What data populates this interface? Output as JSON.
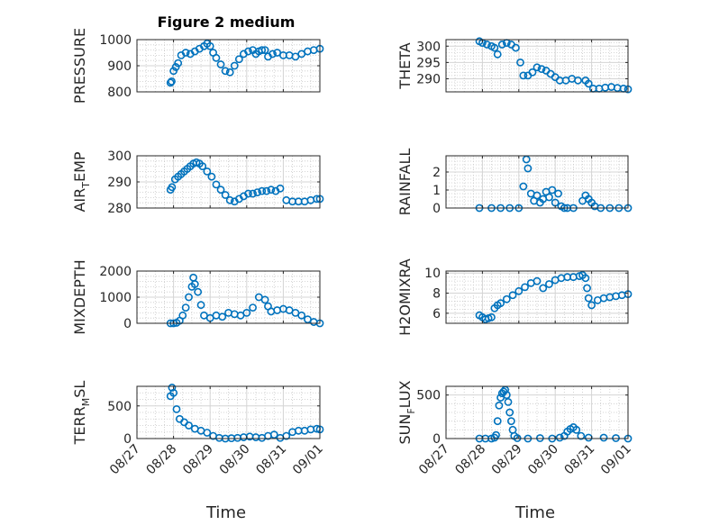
{
  "figure": {
    "title": "Figure 2 medium",
    "xlabel": "Time"
  },
  "xticks": [
    "08/27",
    "08/28",
    "08/29",
    "08/30",
    "08/31",
    "09/01"
  ],
  "colors": {
    "marker": "#0072BD",
    "axis": "#262626",
    "grid": "#d4d4d4"
  },
  "chart_data": [
    {
      "type": "scatter",
      "ylabel": "PRESSURE",
      "ylim": [
        800,
        1000
      ],
      "yticks": [
        800,
        900,
        1000
      ],
      "grid": true,
      "x": [
        "08/27 22:00",
        "08/27 22:45",
        "08/28 00:00",
        "08/28 01:30",
        "08/28 03:00",
        "08/28 05:00",
        "08/28 08:00",
        "08/28 11:00",
        "08/28 14:00",
        "08/28 17:00",
        "08/28 20:00",
        "08/28 22:00",
        "08/29 00:00",
        "08/29 02:00",
        "08/29 04:00",
        "08/29 07:00",
        "08/29 10:00",
        "08/29 13:00",
        "08/29 16:00",
        "08/29 19:00",
        "08/29 22:00",
        "08/30 01:00",
        "08/30 04:00",
        "08/30 06:00",
        "08/30 08:00",
        "08/30 10:00",
        "08/30 12:00",
        "08/30 14:00",
        "08/30 17:00",
        "08/30 20:00",
        "08/31 00:00",
        "08/31 04:00",
        "08/31 08:00",
        "08/31 12:00",
        "08/31 16:00",
        "08/31 20:00",
        "09/01 00:00"
      ],
      "y": [
        835,
        840,
        880,
        895,
        910,
        940,
        950,
        945,
        955,
        965,
        975,
        985,
        975,
        950,
        930,
        905,
        880,
        875,
        900,
        925,
        945,
        955,
        960,
        945,
        955,
        960,
        960,
        935,
        945,
        950,
        940,
        940,
        935,
        945,
        955,
        960,
        965
      ]
    },
    {
      "type": "scatter",
      "ylabel": "THETA",
      "ylim": [
        286,
        302
      ],
      "yticks": [
        290,
        295,
        300
      ],
      "grid": true,
      "x": [
        "08/27 22:00",
        "08/28 00:00",
        "08/28 03:00",
        "08/28 06:00",
        "08/28 08:00",
        "08/28 10:00",
        "08/28 13:00",
        "08/28 16:00",
        "08/28 19:00",
        "08/28 22:00",
        "08/29 01:00",
        "08/29 03:00",
        "08/29 06:00",
        "08/29 09:00",
        "08/29 12:00",
        "08/29 15:00",
        "08/29 18:00",
        "08/29 21:00",
        "08/30 00:00",
        "08/30 03:00",
        "08/30 07:00",
        "08/30 11:00",
        "08/30 15:00",
        "08/30 20:00",
        "08/30 22:00",
        "08/31 01:00",
        "08/31 05:00",
        "08/31 09:00",
        "08/31 13:00",
        "08/31 17:00",
        "08/31 21:00",
        "09/01 00:00"
      ],
      "y": [
        301.5,
        301,
        300.5,
        300,
        299.5,
        297.5,
        300.5,
        301,
        300.5,
        299.5,
        295,
        291,
        291,
        292,
        293.5,
        293,
        292.5,
        291.5,
        290.5,
        289.5,
        289.5,
        290,
        289.5,
        289.5,
        288.5,
        287,
        287,
        287.3,
        287.5,
        287.2,
        287,
        286.8
      ]
    },
    {
      "type": "scatter",
      "ylabel": "AIR_TEMP",
      "ylim": [
        280,
        300
      ],
      "yticks": [
        280,
        290,
        300
      ],
      "grid": true,
      "x": [
        "08/27 22:00",
        "08/27 23:00",
        "08/28 01:00",
        "08/28 03:00",
        "08/28 05:00",
        "08/28 07:00",
        "08/28 09:00",
        "08/28 11:00",
        "08/28 13:00",
        "08/28 15:00",
        "08/28 17:00",
        "08/28 19:00",
        "08/28 22:00",
        "08/29 01:00",
        "08/29 04:00",
        "08/29 07:00",
        "08/29 10:00",
        "08/29 13:00",
        "08/29 16:00",
        "08/29 19:00",
        "08/29 22:00",
        "08/30 01:00",
        "08/30 04:00",
        "08/30 07:00",
        "08/30 10:00",
        "08/30 13:00",
        "08/30 16:00",
        "08/30 19:00",
        "08/30 22:00",
        "08/31 02:00",
        "08/31 06:00",
        "08/31 10:00",
        "08/31 14:00",
        "08/31 18:00",
        "08/31 22:00",
        "09/01 00:00"
      ],
      "y": [
        287,
        288,
        291,
        292,
        293,
        294,
        295,
        296,
        297,
        297.5,
        297,
        296,
        294,
        292,
        289,
        287,
        285,
        283,
        282.5,
        283.5,
        284.5,
        285.5,
        285.5,
        286,
        286.5,
        286.5,
        287,
        286.5,
        287.5,
        283,
        282.5,
        282.5,
        282.5,
        283,
        283.5,
        283.5
      ]
    },
    {
      "type": "scatter",
      "ylabel": "RAINFALL",
      "ylim": [
        0,
        2.9
      ],
      "yticks": [
        0,
        1,
        2
      ],
      "grid": true,
      "x": [
        "08/27 22:00",
        "08/28 06:00",
        "08/28 12:00",
        "08/28 18:00",
        "08/29 00:00",
        "08/29 03:00",
        "08/29 05:00",
        "08/29 06:00",
        "08/29 08:00",
        "08/29 10:00",
        "08/29 12:00",
        "08/29 14:00",
        "08/29 16:00",
        "08/29 18:00",
        "08/29 20:00",
        "08/29 22:00",
        "08/30 00:00",
        "08/30 02:00",
        "08/30 04:00",
        "08/30 06:00",
        "08/30 08:00",
        "08/30 12:00",
        "08/30 18:00",
        "08/30 20:00",
        "08/30 22:00",
        "08/31 00:00",
        "08/31 02:00",
        "08/31 06:00",
        "08/31 12:00",
        "08/31 18:00",
        "09/01 00:00"
      ],
      "y": [
        0,
        0,
        0,
        0,
        0,
        1.2,
        2.7,
        2.2,
        0.8,
        0.4,
        0.7,
        0.3,
        0.5,
        0.9,
        0.6,
        1,
        0.3,
        0.8,
        0.1,
        0,
        0,
        0,
        0.4,
        0.7,
        0.5,
        0.3,
        0.1,
        0,
        0,
        0,
        0
      ]
    },
    {
      "type": "scatter",
      "ylabel": "MIXDEPTH",
      "ylim": [
        0,
        2000
      ],
      "yticks": [
        0,
        1000,
        2000
      ],
      "grid": true,
      "x": [
        "08/27 22:00",
        "08/28 00:00",
        "08/28 02:00",
        "08/28 04:00",
        "08/28 06:00",
        "08/28 08:00",
        "08/28 10:00",
        "08/28 12:00",
        "08/28 13:00",
        "08/28 14:00",
        "08/28 16:00",
        "08/28 18:00",
        "08/28 20:00",
        "08/29 00:00",
        "08/29 04:00",
        "08/29 08:00",
        "08/29 12:00",
        "08/29 16:00",
        "08/29 20:00",
        "08/30 00:00",
        "08/30 04:00",
        "08/30 08:00",
        "08/30 12:00",
        "08/30 14:00",
        "08/30 16:00",
        "08/30 20:00",
        "08/31 00:00",
        "08/31 04:00",
        "08/31 08:00",
        "08/31 12:00",
        "08/31 16:00",
        "08/31 20:00",
        "09/01 00:00"
      ],
      "y": [
        0,
        0,
        20,
        100,
        300,
        600,
        1000,
        1400,
        1750,
        1500,
        1200,
        700,
        300,
        200,
        300,
        250,
        400,
        350,
        300,
        400,
        600,
        1000,
        900,
        650,
        450,
        500,
        550,
        500,
        400,
        300,
        150,
        50,
        0
      ]
    },
    {
      "type": "scatter",
      "ylabel": "H2OMIXRA",
      "ylim": [
        5,
        10.2
      ],
      "yticks": [
        6,
        8,
        10
      ],
      "grid": true,
      "x": [
        "08/27 22:00",
        "08/28 00:00",
        "08/28 02:00",
        "08/28 04:00",
        "08/28 06:00",
        "08/28 08:00",
        "08/28 10:00",
        "08/28 12:00",
        "08/28 16:00",
        "08/28 20:00",
        "08/29 00:00",
        "08/29 04:00",
        "08/29 08:00",
        "08/29 12:00",
        "08/29 16:00",
        "08/29 20:00",
        "08/30 00:00",
        "08/30 04:00",
        "08/30 08:00",
        "08/30 12:00",
        "08/30 16:00",
        "08/30 18:00",
        "08/30 20:00",
        "08/30 21:00",
        "08/30 22:00",
        "08/31 00:00",
        "08/31 04:00",
        "08/31 08:00",
        "08/31 12:00",
        "08/31 16:00",
        "08/31 20:00",
        "09/01 00:00"
      ],
      "y": [
        5.8,
        5.6,
        5.4,
        5.5,
        5.6,
        6.5,
        6.8,
        7,
        7.4,
        7.8,
        8.2,
        8.6,
        9,
        9.2,
        8.5,
        8.9,
        9.3,
        9.5,
        9.6,
        9.6,
        9.7,
        9.8,
        9.5,
        8.5,
        7.5,
        6.8,
        7.3,
        7.5,
        7.6,
        7.7,
        7.8,
        7.9
      ]
    },
    {
      "type": "scatter",
      "ylabel": "TERR_MSL",
      "ylim": [
        0,
        800
      ],
      "yticks": [
        0,
        500
      ],
      "grid": true,
      "x": [
        "08/27 22:00",
        "08/27 23:00",
        "08/28 00:00",
        "08/28 02:00",
        "08/28 04:00",
        "08/28 07:00",
        "08/28 10:00",
        "08/28 14:00",
        "08/28 18:00",
        "08/28 22:00",
        "08/29 02:00",
        "08/29 06:00",
        "08/29 10:00",
        "08/29 14:00",
        "08/29 18:00",
        "08/29 22:00",
        "08/30 02:00",
        "08/30 06:00",
        "08/30 10:00",
        "08/30 14:00",
        "08/30 18:00",
        "08/30 22:00",
        "08/31 02:00",
        "08/31 06:00",
        "08/31 10:00",
        "08/31 14:00",
        "08/31 18:00",
        "08/31 22:00",
        "09/01 00:00"
      ],
      "y": [
        650,
        780,
        700,
        450,
        300,
        250,
        200,
        150,
        120,
        90,
        40,
        10,
        0,
        5,
        10,
        20,
        30,
        20,
        10,
        40,
        60,
        10,
        40,
        100,
        120,
        120,
        140,
        150,
        140
      ]
    },
    {
      "type": "scatter",
      "ylabel": "SUN_FLUX",
      "ylim": [
        0,
        600
      ],
      "yticks": [
        0,
        500
      ],
      "grid": true,
      "x": [
        "08/27 22:00",
        "08/28 02:00",
        "08/28 06:00",
        "08/28 08:00",
        "08/28 09:00",
        "08/28 10:00",
        "08/28 11:00",
        "08/28 12:00",
        "08/28 13:00",
        "08/28 14:00",
        "08/28 15:00",
        "08/28 16:00",
        "08/28 17:00",
        "08/28 18:00",
        "08/28 19:00",
        "08/28 20:00",
        "08/28 21:00",
        "08/28 23:00",
        "08/29 06:00",
        "08/29 14:00",
        "08/29 22:00",
        "08/30 03:00",
        "08/30 06:00",
        "08/30 08:00",
        "08/30 10:00",
        "08/30 12:00",
        "08/30 14:00",
        "08/30 17:00",
        "08/30 22:00",
        "08/31 08:00",
        "08/31 16:00",
        "09/01 00:00"
      ],
      "y": [
        0,
        0,
        0,
        10,
        40,
        200,
        380,
        470,
        520,
        540,
        560,
        500,
        420,
        300,
        200,
        100,
        30,
        5,
        0,
        5,
        0,
        10,
        30,
        80,
        110,
        130,
        100,
        30,
        10,
        10,
        5,
        0
      ]
    }
  ]
}
